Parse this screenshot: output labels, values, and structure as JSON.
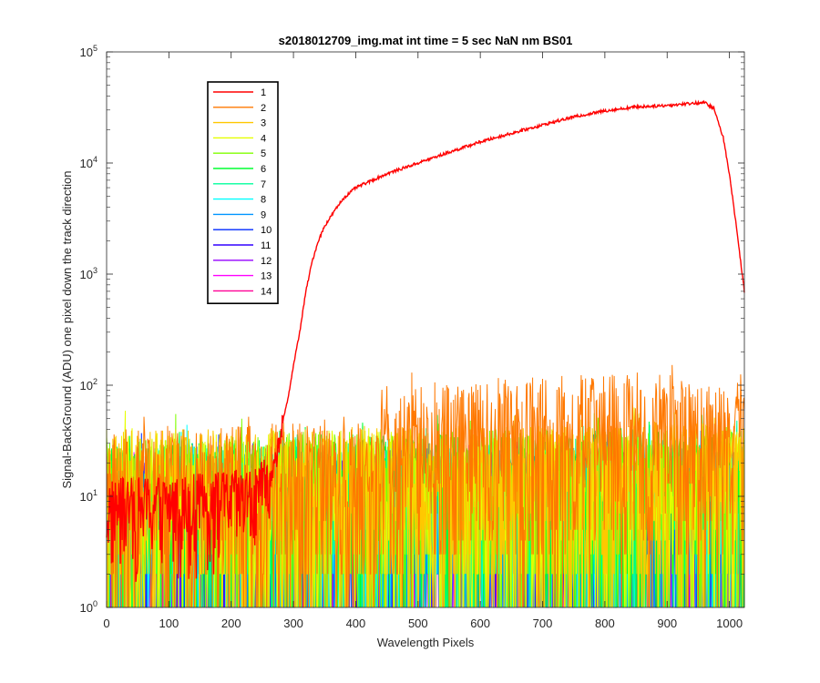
{
  "chart_data": {
    "type": "line",
    "title": "s2018012709_img.mat int time = 5 sec  NaN nm BS01",
    "xlabel": "Wavelength Pixels",
    "ylabel": "Signal-BackGround (ADU) one pixel down the track direction",
    "xlim": [
      0,
      1024
    ],
    "ylim": [
      1,
      100000
    ],
    "yscale": "log",
    "grid": false,
    "legend_position": "top-left",
    "x_ticks": [
      0,
      100,
      200,
      300,
      400,
      500,
      600,
      700,
      800,
      900,
      1000
    ],
    "x_tick_labels": [
      "0",
      "100",
      "200",
      "300",
      "400",
      "500",
      "600",
      "700",
      "800",
      "900",
      "1000"
    ],
    "y_ticks": [
      1,
      10,
      100,
      1000,
      10000,
      100000
    ],
    "y_tick_labels": [
      {
        "base": "10",
        "exp": "0"
      },
      {
        "base": "10",
        "exp": "1"
      },
      {
        "base": "10",
        "exp": "2"
      },
      {
        "base": "10",
        "exp": "3"
      },
      {
        "base": "10",
        "exp": "4"
      },
      {
        "base": "10",
        "exp": "5"
      }
    ],
    "series": [
      {
        "name": "1",
        "color": "#ff0000",
        "kind": "signal",
        "points": [
          [
            0,
            8
          ],
          [
            150,
            9
          ],
          [
            240,
            10
          ],
          [
            265,
            14
          ],
          [
            272,
            22
          ],
          [
            280,
            40
          ],
          [
            290,
            70
          ],
          [
            300,
            150
          ],
          [
            310,
            300
          ],
          [
            320,
            700
          ],
          [
            330,
            1300
          ],
          [
            340,
            2000
          ],
          [
            350,
            2700
          ],
          [
            360,
            3300
          ],
          [
            370,
            4000
          ],
          [
            380,
            4800
          ],
          [
            400,
            6000
          ],
          [
            450,
            8000
          ],
          [
            500,
            10000
          ],
          [
            550,
            12500
          ],
          [
            600,
            15500
          ],
          [
            650,
            18500
          ],
          [
            700,
            22000
          ],
          [
            750,
            26000
          ],
          [
            800,
            29500
          ],
          [
            850,
            32000
          ],
          [
            900,
            33000
          ],
          [
            940,
            34500
          ],
          [
            960,
            35000
          ],
          [
            975,
            31000
          ],
          [
            990,
            17000
          ],
          [
            1000,
            8000
          ],
          [
            1010,
            3000
          ],
          [
            1024,
            700
          ]
        ]
      },
      {
        "name": "2",
        "color": "#ff7800",
        "kind": "noise",
        "points": [
          [
            0,
            20
          ],
          [
            200,
            22
          ],
          [
            300,
            24
          ],
          [
            400,
            28
          ],
          [
            460,
            35
          ],
          [
            480,
            45
          ],
          [
            500,
            50
          ],
          [
            600,
            55
          ],
          [
            700,
            62
          ],
          [
            800,
            65
          ],
          [
            850,
            68
          ],
          [
            900,
            65
          ],
          [
            950,
            55
          ],
          [
            1024,
            45
          ]
        ]
      },
      {
        "name": "3",
        "color": "#ffc800",
        "kind": "noise",
        "points": [
          [
            0,
            20
          ],
          [
            1024,
            25
          ]
        ]
      },
      {
        "name": "4",
        "color": "#e6ff00",
        "kind": "noise",
        "points": [
          [
            0,
            19
          ],
          [
            1024,
            24
          ]
        ]
      },
      {
        "name": "5",
        "color": "#80ff00",
        "kind": "noise",
        "points": [
          [
            0,
            18
          ],
          [
            1024,
            22
          ]
        ]
      },
      {
        "name": "6",
        "color": "#00ff32",
        "kind": "noise",
        "points": [
          [
            0,
            17
          ],
          [
            1024,
            20
          ]
        ]
      },
      {
        "name": "7",
        "color": "#00ff9c",
        "kind": "noise",
        "points": [
          [
            0,
            15
          ],
          [
            1024,
            18
          ]
        ]
      },
      {
        "name": "8",
        "color": "#00ffff",
        "kind": "noise",
        "points": [
          [
            0,
            14
          ],
          [
            1024,
            16
          ]
        ]
      },
      {
        "name": "9",
        "color": "#0096ff",
        "kind": "noise",
        "points": [
          [
            0,
            13
          ],
          [
            1024,
            15
          ]
        ]
      },
      {
        "name": "10",
        "color": "#0028ff",
        "kind": "noise",
        "points": [
          [
            0,
            12
          ],
          [
            1024,
            14
          ]
        ]
      },
      {
        "name": "11",
        "color": "#3200ff",
        "kind": "noise",
        "points": [
          [
            0,
            12
          ],
          [
            1024,
            13
          ]
        ]
      },
      {
        "name": "12",
        "color": "#9600ff",
        "kind": "noise",
        "points": [
          [
            0,
            11
          ],
          [
            1024,
            12
          ]
        ]
      },
      {
        "name": "13",
        "color": "#ff00ff",
        "kind": "noise",
        "points": [
          [
            0,
            11
          ],
          [
            1024,
            12
          ]
        ]
      },
      {
        "name": "14",
        "color": "#ff0096",
        "kind": "noise",
        "points": [
          [
            0,
            10
          ],
          [
            1024,
            11
          ]
        ]
      }
    ]
  }
}
